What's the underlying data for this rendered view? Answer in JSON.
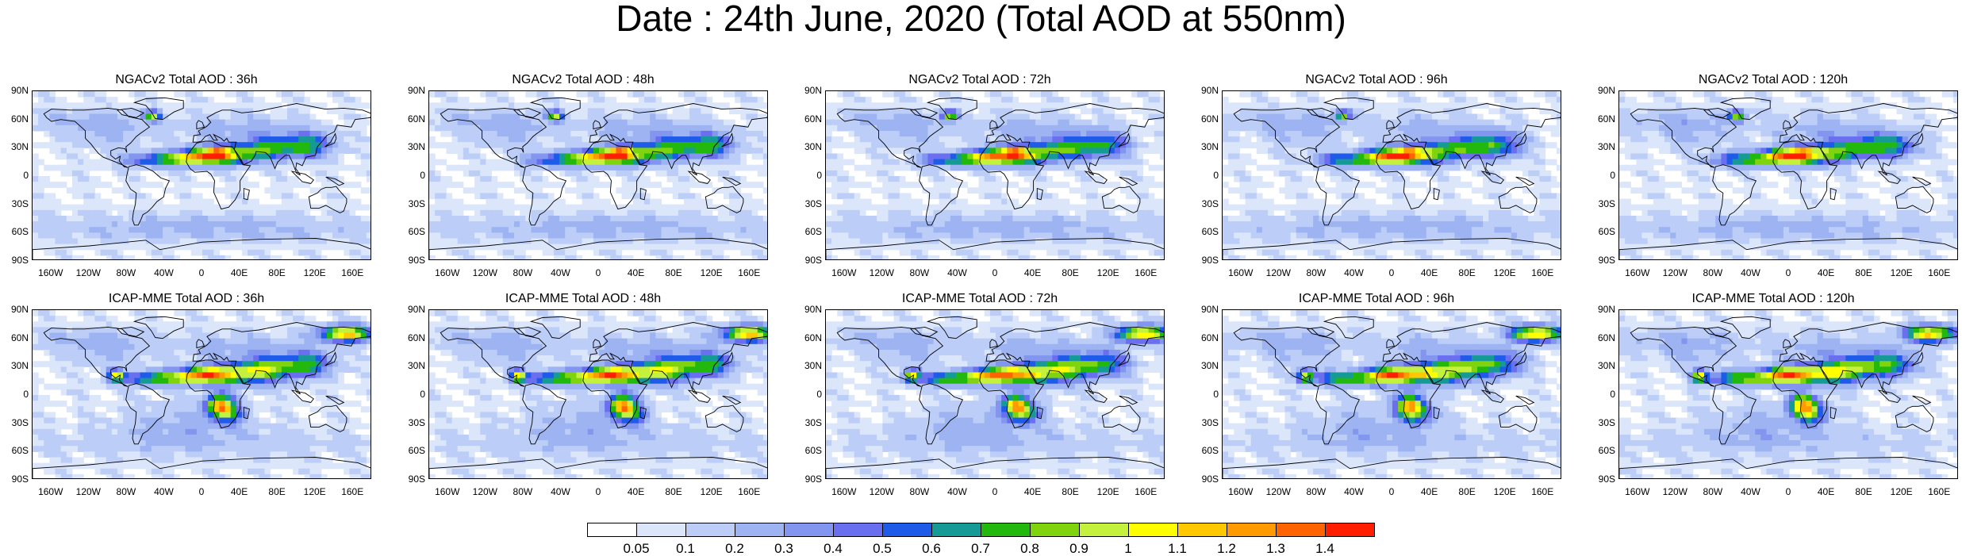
{
  "title": "Date : 24th June, 2020 (Total AOD at 550nm)",
  "panels": [
    {
      "title": "NGACv2 Total AOD : 36h",
      "model": "NGACv2",
      "lead": "36h"
    },
    {
      "title": "NGACv2 Total AOD : 48h",
      "model": "NGACv2",
      "lead": "48h"
    },
    {
      "title": "NGACv2 Total AOD : 72h",
      "model": "NGACv2",
      "lead": "72h"
    },
    {
      "title": "NGACv2 Total AOD : 96h",
      "model": "NGACv2",
      "lead": "96h"
    },
    {
      "title": "NGACv2 Total AOD : 120h",
      "model": "NGACv2",
      "lead": "120h"
    },
    {
      "title": "ICAP-MME Total AOD : 36h",
      "model": "ICAP-MME",
      "lead": "36h"
    },
    {
      "title": "ICAP-MME Total AOD : 48h",
      "model": "ICAP-MME",
      "lead": "48h"
    },
    {
      "title": "ICAP-MME Total AOD : 72h",
      "model": "ICAP-MME",
      "lead": "72h"
    },
    {
      "title": "ICAP-MME Total AOD : 96h",
      "model": "ICAP-MME",
      "lead": "96h"
    },
    {
      "title": "ICAP-MME Total AOD : 120h",
      "model": "ICAP-MME",
      "lead": "120h"
    }
  ],
  "lat_labels": [
    "90N",
    "60N",
    "30N",
    "0",
    "30S",
    "60S",
    "90S"
  ],
  "lon_labels": [
    "160W",
    "120W",
    "80W",
    "40W",
    "0",
    "40E",
    "80E",
    "120E",
    "160E"
  ],
  "colorbar": {
    "labels": [
      "0.05",
      "0.1",
      "0.2",
      "0.3",
      "0.4",
      "0.5",
      "0.6",
      "0.7",
      "0.8",
      "0.9",
      "1",
      "1.1",
      "1.2",
      "1.3",
      "1.4"
    ],
    "colors": [
      "#ffffff",
      "#dce6fa",
      "#bccdf7",
      "#9db3f2",
      "#8296f0",
      "#6a6ff0",
      "#1e5be8",
      "#159a96",
      "#22b80e",
      "#7fd40e",
      "#c4f23c",
      "#ffff00",
      "#ffc800",
      "#ff9a00",
      "#ff6400",
      "#ff1e00"
    ]
  }
}
